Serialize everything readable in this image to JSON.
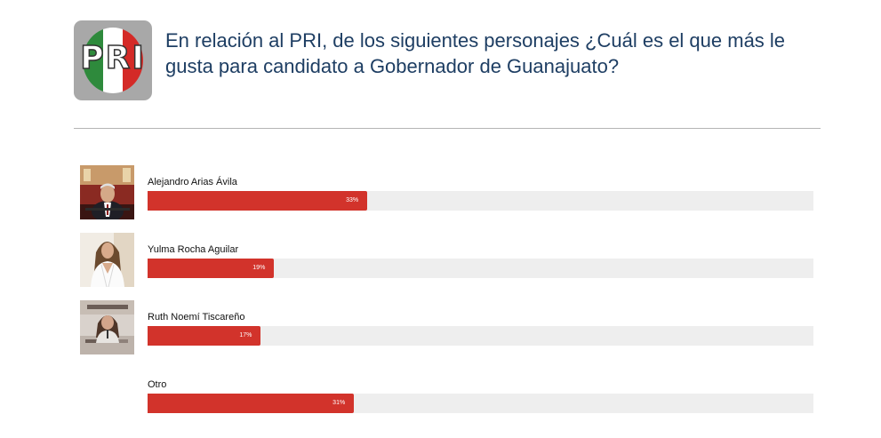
{
  "header": {
    "logo_text": "PRI",
    "question": "En relación al PRI, de los siguientes personajes ¿Cuál es el que más le gusta para candidato a Gobernador de Guanajuato?"
  },
  "colors": {
    "accent": "#d2332b",
    "track": "#eeeeee",
    "title": "#1e3e63"
  },
  "chart_data": {
    "type": "bar",
    "orientation": "horizontal",
    "categories": [
      "Alejandro Arias Ávila",
      "Yulma Rocha Aguilar",
      "Ruth Noemí Tiscareño",
      "Otro"
    ],
    "values": [
      33,
      19,
      17,
      31
    ],
    "labels": [
      "33%",
      "19%",
      "17%",
      "31%"
    ],
    "xlim": [
      0,
      100
    ]
  },
  "candidates": [
    {
      "name": "Alejandro Arias Ávila",
      "value": 33,
      "label": "33%",
      "has_photo": true
    },
    {
      "name": "Yulma Rocha Aguilar",
      "value": 19,
      "label": "19%",
      "has_photo": true
    },
    {
      "name": "Ruth Noemí Tiscareño",
      "value": 17,
      "label": "17%",
      "has_photo": true
    },
    {
      "name": "Otro",
      "value": 31,
      "label": "31%",
      "has_photo": false
    }
  ]
}
